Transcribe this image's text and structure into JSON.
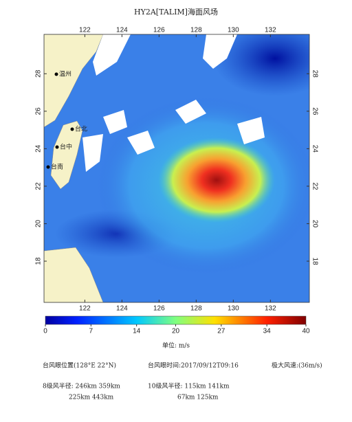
{
  "chart_data": {
    "type": "windmap",
    "title": "HY2A[TALIM]海面风场",
    "xlim": [
      119.8,
      134.1
    ],
    "ylim": [
      15.8,
      30.1
    ],
    "xticks": [
      122,
      124,
      126,
      128,
      130,
      132
    ],
    "yticks": [
      18,
      20,
      22,
      24,
      26,
      28
    ],
    "cities": [
      "温州",
      "台北",
      "台中",
      "台南"
    ],
    "colorbar": {
      "lim": [
        0,
        40
      ],
      "ticks": [
        0,
        7,
        14,
        20,
        27,
        34,
        40
      ]
    },
    "unit_label": "单位: m/s",
    "info": {
      "eye_position": "台风眼位置(128°E  22°N)",
      "eye_time": "台风眼时间:2017/09/12T09:16",
      "max_wind": "极大风速:(36m/s)",
      "r8_label": "8级风半径:  246km    359km",
      "r8_second": "225km    443km",
      "r10_label": "10级风半径:  115km    141km",
      "r10_second": "67km    125km"
    }
  }
}
